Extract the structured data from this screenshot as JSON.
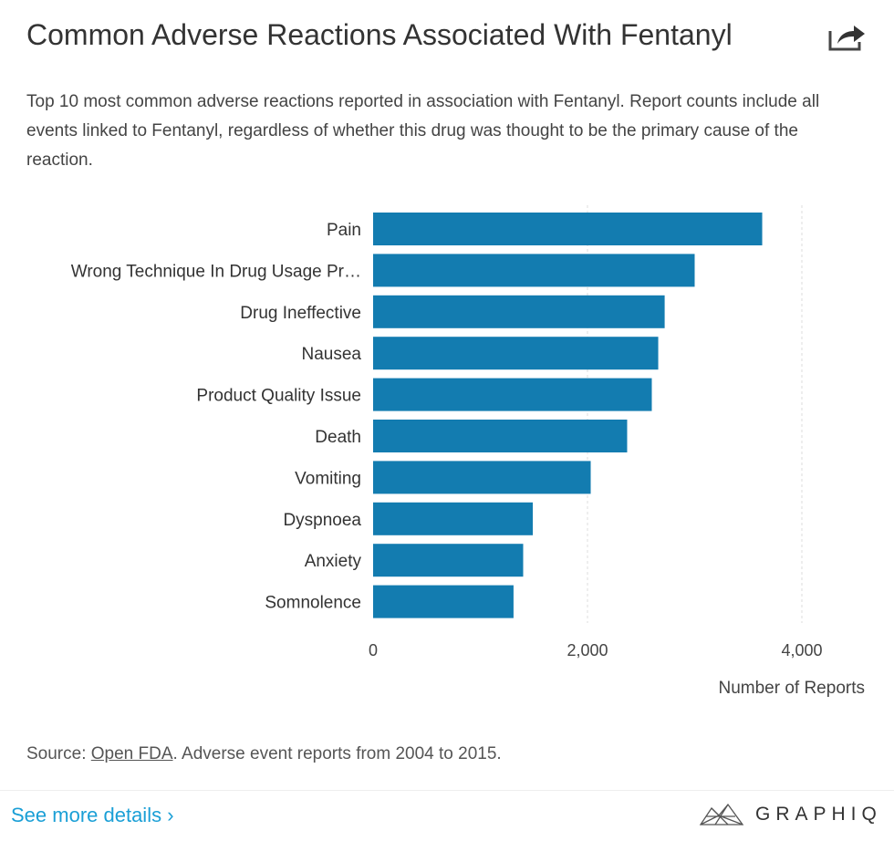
{
  "title": "Common Adverse Reactions Associated With Fentanyl",
  "description": "Top 10 most common adverse reactions reported in association with Fentanyl. Report counts include all events linked to Fentanyl, regardless of whether this drug was thought to be the primary cause of the reaction.",
  "share_icon": "share-icon",
  "source": {
    "prefix": "Source: ",
    "link": "Open FDA",
    "suffix": ". Adverse event reports from 2004 to 2015."
  },
  "footer": {
    "more_label": "See more details ›",
    "brand": "GRAPHIQ"
  },
  "colors": {
    "bar": "#137cb0",
    "link": "#1a9fd6"
  },
  "chart_data": {
    "type": "bar",
    "orientation": "horizontal",
    "categories": [
      "Pain",
      "Wrong Technique In Drug Usage Pr…",
      "Drug Ineffective",
      "Nausea",
      "Product Quality Issue",
      "Death",
      "Vomiting",
      "Dyspnoea",
      "Anxiety",
      "Somnolence"
    ],
    "values": [
      3630,
      3000,
      2720,
      2660,
      2600,
      2370,
      2030,
      1490,
      1400,
      1310
    ],
    "xlabel": "Number of Reports",
    "xlim": [
      0,
      4000
    ],
    "xticks": [
      0,
      2000,
      4000
    ],
    "xtick_labels": [
      "0",
      "2,000",
      "4,000"
    ],
    "grid": "vertical dashed"
  }
}
